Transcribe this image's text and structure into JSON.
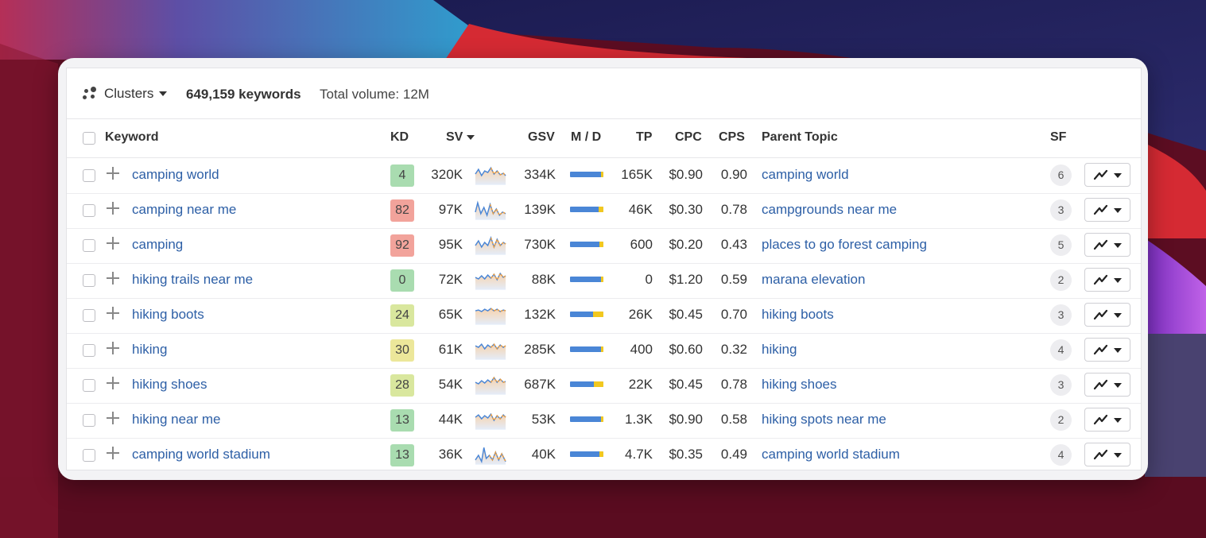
{
  "toolbar": {
    "clusters_label": "Clusters",
    "keywords_count": "649,159 keywords",
    "total_volume": "Total volume: 12M"
  },
  "columns": {
    "keyword": "Keyword",
    "kd": "KD",
    "sv": "SV",
    "gsv": "GSV",
    "md": "M / D",
    "tp": "TP",
    "cpc": "CPC",
    "cps": "CPS",
    "parent_topic": "Parent Topic",
    "sf": "SF"
  },
  "colors": {
    "kd_green": "#a9dcb0",
    "kd_red": "#f2a39b",
    "kd_yellowgreen": "#d9e79e",
    "kd_yellow": "#ece79a",
    "link": "#2d5fa6",
    "md_blue": "#4a86d6",
    "md_yellow": "#f2c81f"
  },
  "rows": [
    {
      "keyword": "camping world",
      "kd": "4",
      "kd_color": "#a9dcb0",
      "sv": "320K",
      "gsv": "334K",
      "md_yellow": 0.08,
      "tp": "165K",
      "cpc": "$0.90",
      "cps": "0.90",
      "parent": "camping world",
      "sf": "6"
    },
    {
      "keyword": "camping near me",
      "kd": "82",
      "kd_color": "#f2a39b",
      "sv": "97K",
      "gsv": "139K",
      "md_yellow": 0.14,
      "tp": "46K",
      "cpc": "$0.30",
      "cps": "0.78",
      "parent": "campgrounds near me",
      "sf": "3"
    },
    {
      "keyword": "camping",
      "kd": "92",
      "kd_color": "#f2a39b",
      "sv": "95K",
      "gsv": "730K",
      "md_yellow": 0.12,
      "tp": "600",
      "cpc": "$0.20",
      "cps": "0.43",
      "parent": "places to go forest camping",
      "sf": "5"
    },
    {
      "keyword": "hiking trails near me",
      "kd": "0",
      "kd_color": "#a9dcb0",
      "sv": "72K",
      "gsv": "88K",
      "md_yellow": 0.06,
      "tp": "0",
      "cpc": "$1.20",
      "cps": "0.59",
      "parent": "marana elevation",
      "sf": "2"
    },
    {
      "keyword": "hiking boots",
      "kd": "24",
      "kd_color": "#d9e79e",
      "sv": "65K",
      "gsv": "132K",
      "md_yellow": 0.32,
      "tp": "26K",
      "cpc": "$0.45",
      "cps": "0.70",
      "parent": "hiking boots",
      "sf": "3"
    },
    {
      "keyword": "hiking",
      "kd": "30",
      "kd_color": "#ece79a",
      "sv": "61K",
      "gsv": "285K",
      "md_yellow": 0.08,
      "tp": "400",
      "cpc": "$0.60",
      "cps": "0.32",
      "parent": "hiking",
      "sf": "4"
    },
    {
      "keyword": "hiking shoes",
      "kd": "28",
      "kd_color": "#d9e79e",
      "sv": "54K",
      "gsv": "687K",
      "md_yellow": 0.28,
      "tp": "22K",
      "cpc": "$0.45",
      "cps": "0.78",
      "parent": "hiking shoes",
      "sf": "3"
    },
    {
      "keyword": "hiking near me",
      "kd": "13",
      "kd_color": "#a9dcb0",
      "sv": "44K",
      "gsv": "53K",
      "md_yellow": 0.06,
      "tp": "1.3K",
      "cpc": "$0.90",
      "cps": "0.58",
      "parent": "hiking spots near me",
      "sf": "2"
    },
    {
      "keyword": "camping world stadium",
      "kd": "13",
      "kd_color": "#a9dcb0",
      "sv": "36K",
      "gsv": "40K",
      "md_yellow": 0.12,
      "tp": "4.7K",
      "cpc": "$0.35",
      "cps": "0.49",
      "parent": "camping world stadium",
      "sf": "4"
    }
  ]
}
